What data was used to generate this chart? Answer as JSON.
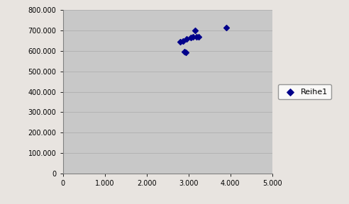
{
  "x": [
    2800,
    2870,
    2900,
    2940,
    2960,
    3050,
    3100,
    3150,
    3200,
    3250,
    3900
  ],
  "y": [
    645000,
    650000,
    598000,
    593000,
    660000,
    665000,
    670000,
    700000,
    670000,
    668000,
    715000
  ],
  "marker_color": "#00008B",
  "marker_size": 4,
  "marker_style": "D",
  "legend_label": "Reihe1",
  "xlim": [
    0,
    5000
  ],
  "ylim": [
    0,
    800000
  ],
  "xticks": [
    0,
    1000,
    2000,
    3000,
    4000,
    5000
  ],
  "yticks": [
    0,
    100000,
    200000,
    300000,
    400000,
    500000,
    600000,
    700000,
    800000
  ],
  "plot_bg_color": "#c8c8c8",
  "figure_bg_color": "#e8e4e0",
  "grid_color": "#b0b0b0",
  "spine_color": "#808080",
  "tick_labelsize": 7,
  "legend_fontsize": 8,
  "legend_box_color": "#ffffff",
  "legend_edge_color": "#808080"
}
